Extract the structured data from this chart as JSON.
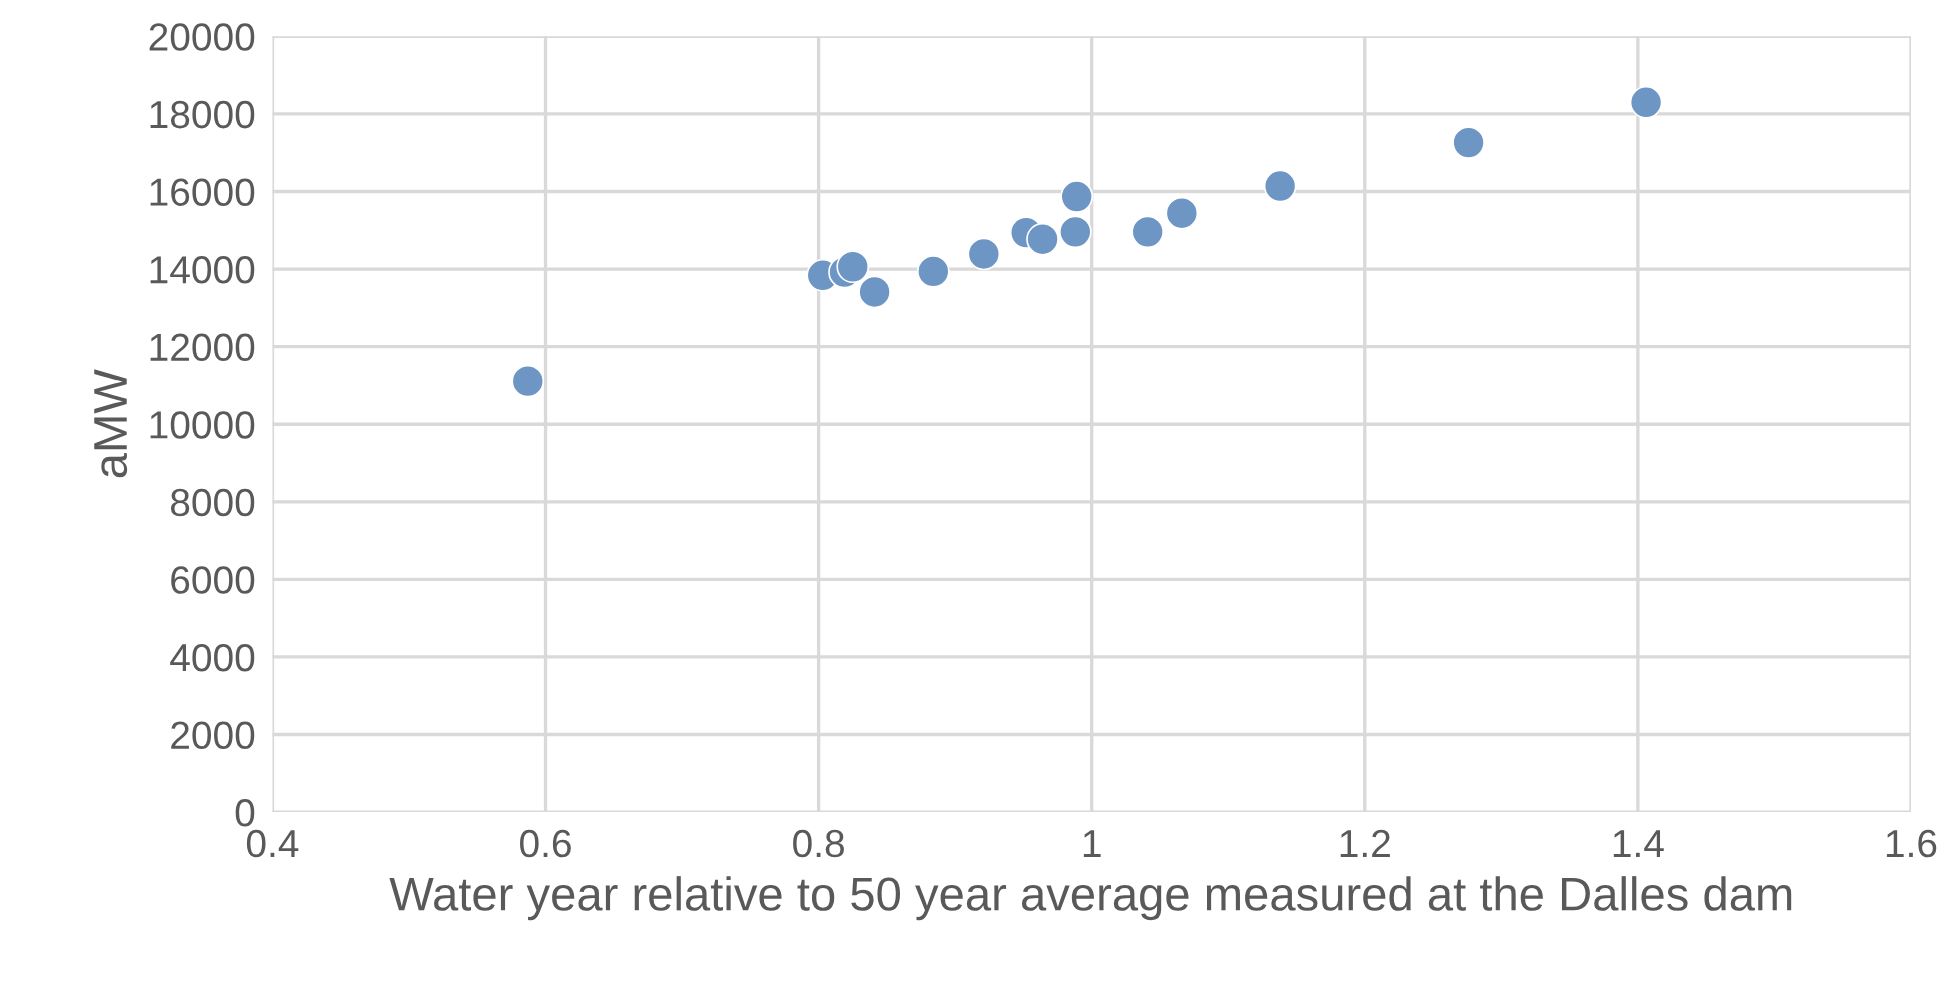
{
  "chart_data": {
    "type": "scatter",
    "xlabel": "Water year relative to 50 year average measured at the Dalles dam",
    "ylabel": "aMW",
    "x": [
      0.587,
      0.803,
      0.819,
      0.825,
      0.841,
      0.884,
      0.921,
      0.952,
      0.964,
      0.989,
      0.988,
      1.041,
      1.066,
      1.138,
      1.276,
      1.406
    ],
    "values": [
      11110,
      13840,
      13920,
      14060,
      13410,
      13940,
      14390,
      14940,
      14770,
      15870,
      14960,
      14960,
      15440,
      16140,
      17260,
      18300
    ],
    "color": "#6e96c4",
    "marker": "circle",
    "xlim": [
      0.4,
      1.6
    ],
    "xticks": [
      0.4,
      0.6,
      0.8,
      1,
      1.2,
      1.4,
      1.6
    ],
    "ylim": [
      0,
      20000
    ],
    "yticks": [
      0,
      2000,
      4000,
      6000,
      8000,
      10000,
      12000,
      14000,
      16000,
      18000,
      20000
    ],
    "grid": true
  }
}
